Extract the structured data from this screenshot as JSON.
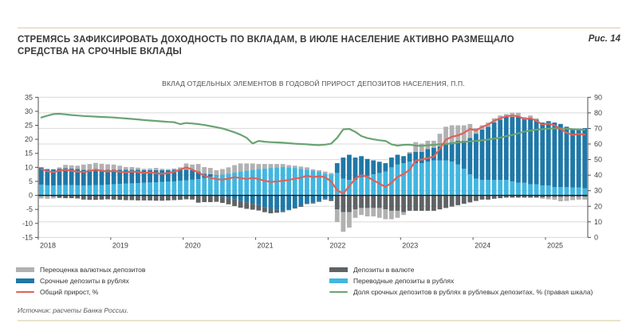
{
  "page": {
    "title": "СТРЕМЯСЬ ЗАФИКСИРОВАТЬ ДОХОДНОСТЬ ПО ВКЛАДАМ, В ИЮЛЕ НАСЕЛЕНИЕ АКТИВНО РАЗМЕЩАЛО СРЕДСТВА НА СРОЧНЫЕ ВКЛАДЫ",
    "figure_label": "Рис. 14",
    "source": "Источник: расчеты Банка России."
  },
  "chart_data": {
    "type": "bar",
    "subtype": "stacked-monthly-bars-with-lines",
    "title": "ВКЛАД ОТДЕЛЬНЫХ ЭЛЕМЕНТОВ В ГОДОВОЙ ПРИРОСТ ДЕПОЗИТОВ НАСЕЛЕНИЯ, П.П.",
    "x_unit": "month",
    "x_start": "2018-01",
    "x_count": 91,
    "x_years": [
      2018,
      2019,
      2020,
      2021,
      2022,
      2023,
      2024,
      2025
    ],
    "left_axis": {
      "min": -15,
      "max": 35,
      "ticks": [
        35,
        30,
        25,
        20,
        15,
        10,
        5,
        0,
        -5,
        -10,
        -15
      ]
    },
    "right_axis": {
      "min": 0,
      "max": 90,
      "ticks": [
        90,
        80,
        70,
        60,
        50,
        40,
        30,
        20,
        10,
        0
      ]
    },
    "grid": "horizontal-on-right-axis-ticks",
    "legend_position": "bottom-two-columns",
    "colors": {
      "grid": "#d9d9d9",
      "zero_line": "#1a1a1a",
      "axis": "#4d4d4d",
      "tick_text": "#404040"
    },
    "stacking": {
      "positive": [
        "transferable_rub",
        "time_rub",
        "fx_revaluation",
        "fx_deposits"
      ],
      "negative": [
        "time_rub",
        "fx_deposits",
        "fx_revaluation",
        "transferable_rub"
      ]
    },
    "bar_series": [
      {
        "key": "fx_revaluation",
        "name": "Переоценка валютных депозитов",
        "color": "#b1b1b1",
        "values": [
          -0.8,
          -0.9,
          -0.7,
          0.5,
          1.2,
          1.1,
          1.2,
          1.9,
          2.1,
          2.4,
          2.2,
          2.0,
          1.8,
          1.5,
          1.0,
          1.0,
          0.8,
          0.5,
          0.6,
          0.8,
          0.5,
          0.4,
          0.5,
          0.8,
          2.2,
          2.0,
          2.6,
          2.4,
          2.2,
          1.8,
          2.0,
          2.2,
          2.6,
          2.8,
          2.6,
          2.2,
          1.8,
          1.6,
          1.4,
          1.2,
          1.0,
          0.8,
          0.8,
          0.8,
          0.8,
          0.5,
          0.5,
          0.7,
          0.5,
          -4.5,
          -7.0,
          -5.5,
          -3.0,
          -2.5,
          -3.0,
          -3.0,
          -3.5,
          -3.5,
          -3.0,
          -2.5,
          -1.0,
          0.5,
          3.5,
          3.0,
          3.0,
          2.5,
          4.5,
          6.0,
          6.0,
          5.5,
          5.5,
          5.0,
          2.0,
          1.5,
          1.5,
          1.5,
          1.5,
          1.0,
          1.5,
          1.5,
          0.5,
          1.0,
          0.5,
          -0.5,
          -0.8,
          -1.0,
          -1.5,
          -1.5,
          -1.2,
          -1.0,
          -1.0
        ]
      },
      {
        "key": "time_rub",
        "name": "Срочные депозиты в рублях",
        "color": "#1f78a8",
        "values": [
          6.2,
          5.8,
          5.8,
          5.9,
          6.0,
          5.9,
          5.8,
          5.6,
          5.5,
          5.5,
          5.4,
          5.3,
          5.2,
          5.0,
          4.9,
          4.8,
          4.7,
          4.5,
          4.4,
          4.3,
          4.2,
          4.1,
          4.1,
          4.0,
          3.8,
          3.4,
          2.8,
          1.5,
          1.0,
          0.2,
          -0.5,
          -1.0,
          -1.5,
          -2.0,
          -2.5,
          -3.0,
          -3.5,
          -4.2,
          -4.8,
          -5.2,
          -5.6,
          -5.0,
          -4.4,
          -3.8,
          -2.8,
          -2.6,
          -2.0,
          -1.2,
          -1.5,
          3.5,
          7.5,
          9.0,
          8.0,
          7.5,
          6.0,
          5.0,
          4.0,
          3.0,
          3.5,
          3.5,
          2.5,
          3.0,
          4.0,
          4.0,
          4.5,
          4.5,
          5.0,
          6.0,
          7.0,
          8.5,
          10.0,
          13.0,
          16.0,
          18.0,
          19.0,
          20.5,
          21.5,
          22.5,
          23.0,
          23.5,
          23.0,
          23.5,
          23.0,
          22.5,
          23.0,
          23.0,
          22.5,
          21.5,
          21.0,
          21.0,
          21.5
        ]
      },
      {
        "key": "fx_deposits",
        "name": "Депозиты в валюте",
        "color": "#5f6365",
        "values": [
          -0.3,
          -0.3,
          -0.4,
          -0.9,
          -1.0,
          -1.0,
          -1.1,
          -1.5,
          -1.6,
          -1.6,
          -1.5,
          -1.4,
          -1.5,
          -1.6,
          -1.7,
          -1.7,
          -1.8,
          -1.8,
          -1.8,
          -1.9,
          -1.9,
          -1.8,
          -1.7,
          -1.6,
          -1.4,
          -1.5,
          -2.6,
          -2.4,
          -2.4,
          -2.3,
          -2.2,
          -2.2,
          -2.3,
          -2.4,
          -2.3,
          -2.1,
          -1.9,
          -1.8,
          -1.6,
          -1.0,
          -0.4,
          -0.3,
          -0.3,
          -0.3,
          -0.3,
          -0.3,
          -0.3,
          -0.3,
          -0.5,
          -5.0,
          -6.0,
          -6.0,
          -5.0,
          -4.5,
          -4.5,
          -4.5,
          -4.5,
          -5.0,
          -5.5,
          -5.5,
          -6.0,
          -5.5,
          -5.5,
          -5.5,
          -5.5,
          -5.5,
          -5.0,
          -4.5,
          -4.0,
          -3.5,
          -3.0,
          -2.5,
          -2.0,
          -1.5,
          -1.5,
          -1.2,
          -1.0,
          -0.8,
          -0.8,
          -0.8,
          -0.8,
          -0.8,
          -0.8,
          -0.7,
          -0.6,
          -0.6,
          -0.6,
          -0.5,
          -0.5,
          -0.5,
          -0.5
        ]
      },
      {
        "key": "transferable_rub",
        "name": "Переводные депозиты в рублях",
        "color": "#41b6e0",
        "values": [
          3.8,
          3.6,
          3.5,
          3.6,
          3.7,
          3.7,
          3.6,
          3.5,
          3.6,
          3.7,
          3.7,
          3.8,
          4.0,
          4.1,
          4.2,
          4.3,
          4.4,
          4.5,
          4.6,
          4.7,
          4.8,
          4.9,
          5.0,
          5.2,
          5.4,
          5.6,
          5.8,
          6.2,
          6.6,
          7.0,
          7.4,
          7.8,
          8.2,
          8.6,
          8.8,
          9.2,
          9.4,
          9.6,
          9.8,
          10.0,
          10.2,
          10.0,
          9.8,
          9.5,
          9.2,
          8.8,
          8.5,
          7.8,
          7.5,
          8.0,
          6.0,
          5.5,
          5.5,
          6.5,
          7.0,
          7.5,
          8.0,
          8.5,
          10.0,
          11.0,
          11.5,
          12.0,
          11.5,
          11.5,
          12.0,
          12.5,
          12.5,
          12.5,
          12.0,
          11.0,
          9.5,
          7.5,
          6.0,
          5.5,
          5.5,
          5.5,
          5.5,
          5.5,
          5.0,
          4.5,
          4.5,
          4.0,
          4.0,
          3.5,
          3.5,
          3.0,
          3.0,
          3.0,
          2.8,
          2.8,
          2.5
        ]
      }
    ],
    "line_series": [
      {
        "key": "total",
        "name": "Общий прирост, %",
        "color": "#e0615a",
        "axis": "left",
        "values": [
          9.4,
          8.6,
          8.3,
          8.8,
          9.1,
          8.8,
          8.5,
          8.3,
          8.7,
          9.2,
          8.8,
          8.5,
          8.7,
          8.4,
          8.2,
          8.5,
          8.3,
          8.0,
          8.2,
          7.9,
          7.7,
          8.0,
          8.4,
          9.2,
          10.0,
          9.2,
          8.2,
          7.0,
          6.2,
          5.8,
          5.6,
          6.0,
          6.5,
          6.2,
          5.8,
          6.3,
          5.8,
          5.2,
          4.8,
          5.0,
          5.2,
          5.5,
          6.0,
          6.3,
          7.0,
          6.5,
          6.8,
          6.5,
          5.0,
          1.8,
          0.6,
          3.3,
          6.0,
          7.2,
          6.6,
          5.4,
          4.2,
          3.0,
          4.5,
          6.6,
          7.6,
          9.1,
          12.4,
          12.8,
          13.3,
          13.8,
          16.6,
          19.9,
          20.9,
          21.4,
          22.3,
          23.7,
          23.2,
          24.4,
          25.3,
          26.6,
          27.5,
          28.2,
          28.5,
          28.2,
          27.2,
          27.5,
          26.6,
          25.3,
          25.6,
          25.0,
          23.7,
          22.3,
          21.6,
          21.9,
          21.7
        ]
      },
      {
        "key": "time_share",
        "name": "Доля срочных депозитов в рублях в рублевых депозитах, % (правая шкала)",
        "color": "#6aa372",
        "axis": "right",
        "values": [
          77.0,
          78.2,
          79.2,
          79.4,
          79.0,
          78.6,
          78.3,
          78.0,
          77.8,
          77.6,
          77.4,
          77.2,
          77.0,
          76.7,
          76.4,
          76.1,
          75.8,
          75.4,
          75.1,
          74.8,
          74.5,
          74.2,
          74.0,
          72.8,
          73.5,
          73.2,
          72.8,
          72.2,
          71.5,
          70.8,
          70.0,
          68.8,
          67.5,
          66.0,
          64.0,
          60.3,
          62.0,
          61.5,
          61.2,
          61.0,
          60.8,
          60.5,
          60.2,
          60.0,
          59.8,
          59.5,
          59.3,
          59.6,
          60.2,
          64.0,
          69.4,
          69.7,
          67.8,
          65.1,
          63.8,
          63.0,
          62.4,
          62.0,
          59.8,
          59.0,
          59.5,
          59.6,
          59.0,
          58.8,
          59.2,
          59.5,
          59.8,
          60.0,
          60.4,
          61.0,
          61.4,
          61.7,
          62.0,
          62.4,
          62.9,
          63.5,
          64.1,
          65.0,
          65.8,
          66.9,
          68.0,
          68.6,
          69.2,
          69.5,
          69.8,
          70.0,
          70.0,
          69.8,
          69.5,
          69.3,
          69.2
        ]
      }
    ]
  }
}
